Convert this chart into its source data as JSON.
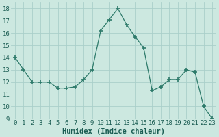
{
  "x": [
    0,
    1,
    2,
    3,
    4,
    5,
    6,
    7,
    8,
    9,
    10,
    11,
    12,
    13,
    14,
    15,
    16,
    17,
    18,
    19,
    20,
    21,
    22,
    23
  ],
  "y": [
    14,
    13,
    12,
    12,
    12,
    11.5,
    11.5,
    11.6,
    12.2,
    13,
    16.2,
    17.1,
    18,
    16.7,
    15.7,
    14.8,
    11.3,
    11.6,
    12.2,
    12.2,
    13,
    12.8,
    10,
    9
  ],
  "line_color": "#2d7a6a",
  "marker_color": "#2d7a6a",
  "bg_color": "#cce8e0",
  "grid_color": "#aacfca",
  "xlabel": "Humidex (Indice chaleur)",
  "ylim": [
    9,
    18.5
  ],
  "xlim": [
    -0.5,
    23.5
  ],
  "yticks": [
    9,
    10,
    11,
    12,
    13,
    14,
    15,
    16,
    17,
    18
  ],
  "xticks": [
    0,
    1,
    2,
    3,
    4,
    5,
    6,
    7,
    8,
    9,
    10,
    11,
    12,
    13,
    14,
    15,
    16,
    17,
    18,
    19,
    20,
    21,
    22,
    23
  ],
  "font_color": "#1a5c52",
  "xlabel_fontsize": 7.5,
  "tick_fontsize": 6.5
}
